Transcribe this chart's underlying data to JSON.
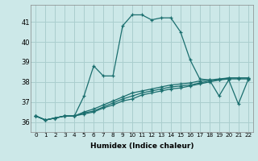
{
  "xlabel": "Humidex (Indice chaleur)",
  "background_color": "#cce8e8",
  "grid_color": "#aacece",
  "line_color": "#1a6e6e",
  "xlim": [
    -0.5,
    22.5
  ],
  "ylim": [
    35.5,
    41.85
  ],
  "yticks": [
    36,
    37,
    38,
    39,
    40,
    41
  ],
  "xticks": [
    0,
    1,
    2,
    3,
    4,
    5,
    6,
    7,
    8,
    9,
    10,
    11,
    12,
    13,
    14,
    15,
    16,
    17,
    18,
    19,
    20,
    21,
    22
  ],
  "series": [
    [
      36.3,
      36.1,
      36.2,
      36.3,
      36.3,
      37.3,
      38.8,
      38.3,
      38.3,
      40.8,
      41.35,
      41.35,
      41.1,
      41.2,
      41.2,
      40.5,
      39.1,
      38.15,
      38.1,
      37.3,
      38.1,
      36.9,
      38.1
    ],
    [
      36.3,
      36.1,
      36.2,
      36.3,
      36.3,
      36.45,
      36.55,
      36.75,
      36.95,
      37.15,
      37.3,
      37.45,
      37.55,
      37.65,
      37.75,
      37.8,
      37.85,
      37.95,
      38.05,
      38.1,
      38.15,
      38.15,
      38.15
    ],
    [
      36.3,
      36.1,
      36.2,
      36.3,
      36.3,
      36.5,
      36.65,
      36.85,
      37.05,
      37.25,
      37.45,
      37.55,
      37.65,
      37.75,
      37.85,
      37.9,
      37.95,
      38.05,
      38.1,
      38.15,
      38.2,
      38.2,
      38.2
    ],
    [
      36.3,
      36.1,
      36.2,
      36.3,
      36.3,
      36.4,
      36.5,
      36.7,
      36.85,
      37.05,
      37.15,
      37.35,
      37.45,
      37.55,
      37.65,
      37.7,
      37.8,
      37.9,
      38.0,
      38.1,
      38.2,
      38.2,
      38.2
    ]
  ]
}
